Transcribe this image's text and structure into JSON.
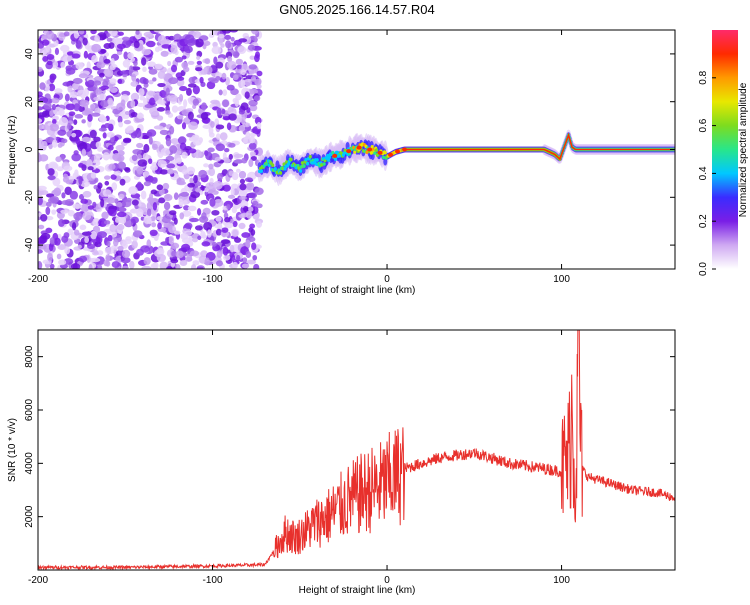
{
  "title": "GN05.2025.166.14.57.R04",
  "chart_data": [
    {
      "type": "heatmap",
      "xlabel": "Height of straight line (km)",
      "ylabel": "Frequency (Hz)",
      "xlim": [
        -200,
        165
      ],
      "ylim": [
        -50,
        50
      ],
      "xticks": [
        -200,
        -100,
        0,
        100
      ],
      "yticks": [
        -40,
        -20,
        0,
        20,
        40
      ],
      "colorbar": {
        "label": "Normalized spectral amplitude",
        "range": [
          0,
          1
        ],
        "ticks": [
          "0.0",
          "0.2",
          "0.4",
          "0.6",
          "0.8"
        ],
        "colors": [
          "#ffffff",
          "#cfa9f2",
          "#7a1ee6",
          "#3a2cff",
          "#00c8ff",
          "#28e68a",
          "#7ddc1f",
          "#e8e800",
          "#ff9a00",
          "#ff2a00",
          "#ff2a6a"
        ]
      },
      "noise_region": {
        "x": [
          -200,
          -73
        ],
        "y": [
          -50,
          50
        ]
      },
      "signal_ridge": {
        "x": [
          -73,
          -68,
          -62,
          -56,
          -50,
          -44,
          -38,
          -32,
          -26,
          -20,
          -15,
          -10,
          -5,
          0,
          5,
          10,
          15,
          30,
          60,
          90,
          96,
          99,
          102,
          104,
          106,
          108,
          120,
          140,
          165
        ],
        "y": [
          -8,
          -6,
          -9,
          -5,
          -8,
          -4,
          -6,
          -3,
          -2,
          0,
          1,
          0,
          -1,
          -3,
          -1,
          0,
          0,
          0,
          0,
          0,
          -2,
          -4,
          2,
          6,
          1,
          0,
          0,
          0,
          0
        ]
      }
    },
    {
      "type": "line",
      "xlabel": "Height of straight line (km)",
      "ylabel": "SNR (10 * v/v)",
      "xlim": [
        -200,
        165
      ],
      "ylim": [
        0,
        9000
      ],
      "xticks": [
        -200,
        -100,
        0,
        100
      ],
      "yticks": [
        2000,
        4000,
        6000,
        8000
      ],
      "color": "#e8302c",
      "series": [
        {
          "x": [
            -200,
            -150,
            -100,
            -70,
            -62,
            -58,
            -52,
            -46,
            -40,
            -34,
            -28,
            -22,
            -16,
            -10,
            -5,
            0,
            5,
            10,
            15,
            20,
            30,
            40,
            50,
            60,
            70,
            80,
            90,
            100,
            104,
            106,
            108,
            110,
            111,
            112,
            115,
            125,
            140,
            155,
            165
          ],
          "values": [
            100,
            100,
            150,
            200,
            1000,
            1400,
            1200,
            1500,
            1800,
            2000,
            2300,
            2600,
            2800,
            3000,
            3100,
            3300,
            3500,
            3800,
            3900,
            4000,
            4200,
            4300,
            4400,
            4200,
            4000,
            3900,
            3800,
            3700,
            4200,
            6000,
            3000,
            9000,
            4200,
            3800,
            3500,
            3300,
            3000,
            2900,
            2700
          ]
        }
      ]
    }
  ]
}
